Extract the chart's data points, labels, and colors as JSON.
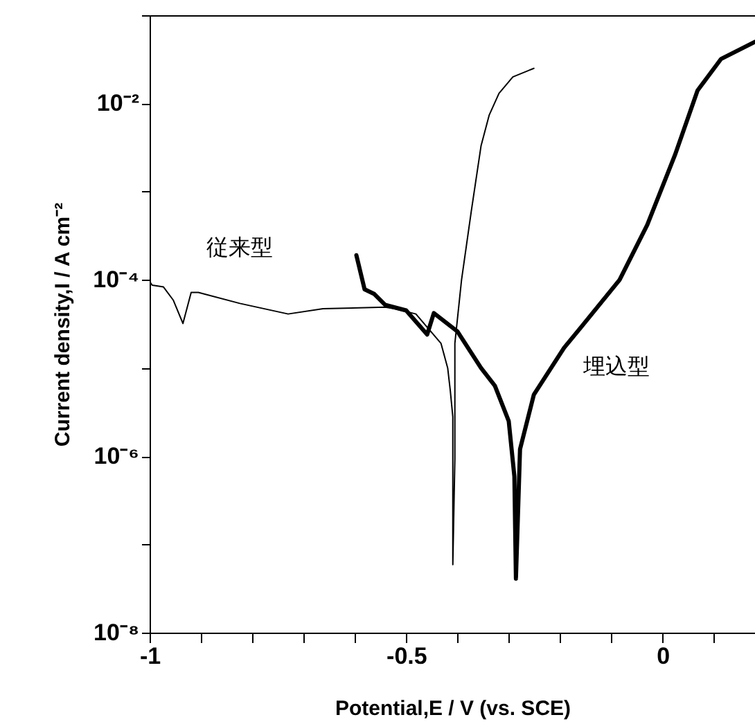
{
  "chart_data": {
    "type": "line",
    "xlabel": "Potential,E / V (vs. SCE)",
    "ylabel": "Current density,I / A cm⁻²",
    "log": "y",
    "xlim": [
      -1,
      0.18
    ],
    "ylim": [
      1e-08,
      0.1
    ],
    "xticks": [
      -1,
      {
        "value": -0.9,
        "label": null
      },
      {
        "value": -0.8,
        "label": null
      },
      {
        "value": -0.7,
        "label": null
      },
      {
        "value": -0.6,
        "label": null
      },
      -0.5,
      {
        "value": -0.4,
        "label": null
      },
      {
        "value": -0.3,
        "label": null
      },
      {
        "value": -0.2,
        "label": null
      },
      {
        "value": -0.1,
        "label": null
      },
      0,
      {
        "value": 0.1,
        "label": null
      }
    ],
    "yticks": [
      {
        "value": 1e-08,
        "label": "10⁻⁸"
      },
      {
        "value": 1e-07,
        "label": null
      },
      {
        "value": 1e-06,
        "label": "10⁻⁶"
      },
      {
        "value": 1e-05,
        "label": null
      },
      {
        "value": 0.0001,
        "label": "10⁻⁴"
      },
      {
        "value": 0.001,
        "label": null
      },
      {
        "value": 0.01,
        "label": "10⁻²"
      },
      {
        "value": 0.1,
        "label": null
      }
    ],
    "grid": false,
    "marker": "none",
    "line_style": "solid",
    "series": [
      {
        "name": "従来型",
        "color": "#000000",
        "x": [
          -1,
          -0.995,
          -0.973,
          -0.954,
          -0.935,
          -0.919,
          -0.905,
          -0.824,
          -0.73,
          -0.662,
          -0.541,
          -0.522,
          -0.481,
          -0.432,
          -0.419,
          -0.414,
          -0.409,
          -0.409,
          -0.405,
          -0.405,
          -0.392,
          -0.373,
          -0.354,
          -0.338,
          -0.319,
          -0.292,
          -0.251
        ],
        "values": [
          9.6e-05,
          8.7e-05,
          8.3e-05,
          5.9e-05,
          3.2e-05,
          7.2e-05,
          7.2e-05,
          5.4e-05,
          4.1e-05,
          4.7e-05,
          4.9e-05,
          4.7e-05,
          4.1e-05,
          1.9e-05,
          1e-05,
          5.6e-06,
          2.8e-06,
          5.9e-08,
          9.3e-07,
          1.9e-05,
          0.0001,
          0.0006,
          0.0033,
          0.0074,
          0.013,
          0.02,
          0.025
        ]
      },
      {
        "name": "埋込型",
        "color": "#000000",
        "x": [
          -0.597,
          -0.581,
          -0.562,
          -0.541,
          -0.5,
          -0.459,
          -0.446,
          -0.4,
          -0.354,
          -0.327,
          -0.3,
          -0.289,
          -0.286,
          -0.278,
          -0.251,
          -0.192,
          -0.157,
          -0.084,
          -0.03,
          0.024,
          0.068,
          0.114,
          0.18
        ],
        "values": [
          0.00019,
          7.8e-05,
          6.9e-05,
          5.2e-05,
          4.5e-05,
          2.4e-05,
          4.2e-05,
          2.6e-05,
          1e-05,
          6.3e-06,
          2.5e-06,
          5.9e-07,
          4.1e-08,
          1.2e-06,
          5e-06,
          1.7e-05,
          3e-05,
          0.0001,
          0.00042,
          0.0026,
          0.014,
          0.032,
          0.05
        ]
      }
    ]
  }
}
